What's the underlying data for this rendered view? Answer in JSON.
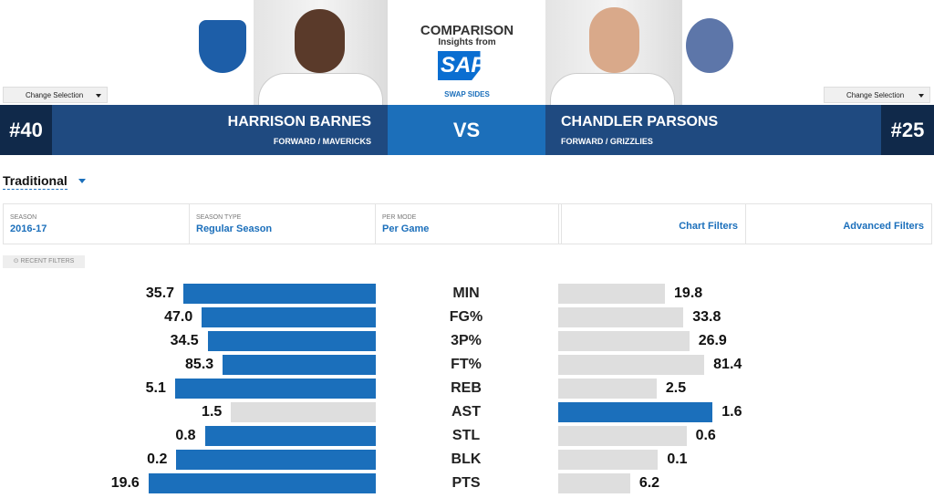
{
  "header": {
    "title": "COMPARISON",
    "subtitle": "Insights from",
    "logo": "SAP",
    "swap": "SWAP SIDES",
    "vs": "VS"
  },
  "players": [
    {
      "number": "#40",
      "name": "HARRISON BARNES",
      "position": "FORWARD / MAVERICKS",
      "change": "Change Selection"
    },
    {
      "number": "#25",
      "name": "CHANDLER PARSONS",
      "position": "FORWARD / GRIZZLIES",
      "change": "Change Selection"
    }
  ],
  "view": "Traditional",
  "filters": [
    {
      "label": "SEASON",
      "value": "2016-17"
    },
    {
      "label": "SEASON TYPE",
      "value": "Regular Season"
    },
    {
      "label": "PER MODE",
      "value": "Per Game"
    }
  ],
  "links": [
    "Chart Filters",
    "Advanced Filters"
  ],
  "recent": "RECENT FILTERS",
  "stats": [
    {
      "label": "MIN",
      "left": 35.7,
      "right": 19.8
    },
    {
      "label": "FG%",
      "left": 47.0,
      "right": 33.8,
      "left_label": "47.0"
    },
    {
      "label": "3P%",
      "left": 34.5,
      "right": 26.9
    },
    {
      "label": "FT%",
      "left": 85.3,
      "right": 81.4
    },
    {
      "label": "REB",
      "left": 5.1,
      "right": 2.5
    },
    {
      "label": "AST",
      "left": 1.5,
      "right": 1.6
    },
    {
      "label": "STL",
      "left": 0.8,
      "right": 0.6
    },
    {
      "label": "BLK",
      "left": 0.2,
      "right": 0.1
    },
    {
      "label": "PTS",
      "left": 19.6,
      "right": 6.2
    }
  ]
}
